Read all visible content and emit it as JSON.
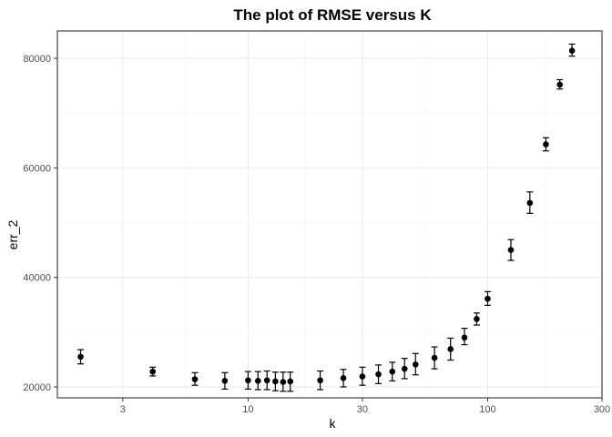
{
  "chart_data": {
    "type": "scatter",
    "title": "The plot of RMSE versus K",
    "xlabel": "k",
    "ylabel": "err_2",
    "x_scale": "log10",
    "xlim": [
      1.6,
      300
    ],
    "ylim": [
      18000,
      85000
    ],
    "x_ticks": [
      3,
      10,
      30,
      100,
      300
    ],
    "x_tick_labels": [
      "3",
      "10",
      "30",
      "100",
      "300"
    ],
    "y_ticks": [
      20000,
      40000,
      60000,
      80000
    ],
    "y_tick_labels": [
      "20000",
      "40000",
      "60000",
      "80000"
    ],
    "grid": true,
    "series": [
      {
        "name": "err_2",
        "error_bars": true,
        "points": [
          {
            "x": 2,
            "y": 25500,
            "lo": 24200,
            "hi": 26800
          },
          {
            "x": 4,
            "y": 22800,
            "lo": 22000,
            "hi": 23600
          },
          {
            "x": 6,
            "y": 21400,
            "lo": 20300,
            "hi": 22600
          },
          {
            "x": 8,
            "y": 21100,
            "lo": 19600,
            "hi": 22600
          },
          {
            "x": 10,
            "y": 21200,
            "lo": 19600,
            "hi": 22800
          },
          {
            "x": 11,
            "y": 21100,
            "lo": 19500,
            "hi": 22800
          },
          {
            "x": 12,
            "y": 21200,
            "lo": 19500,
            "hi": 22900
          },
          {
            "x": 13,
            "y": 21000,
            "lo": 19300,
            "hi": 22700
          },
          {
            "x": 14,
            "y": 20900,
            "lo": 19200,
            "hi": 22700
          },
          {
            "x": 15,
            "y": 21000,
            "lo": 19200,
            "hi": 22700
          },
          {
            "x": 20,
            "y": 21200,
            "lo": 19500,
            "hi": 22900
          },
          {
            "x": 25,
            "y": 21600,
            "lo": 20000,
            "hi": 23200
          },
          {
            "x": 30,
            "y": 21900,
            "lo": 20300,
            "hi": 23600
          },
          {
            "x": 35,
            "y": 22300,
            "lo": 20600,
            "hi": 24000
          },
          {
            "x": 40,
            "y": 22800,
            "lo": 21100,
            "hi": 24500
          },
          {
            "x": 45,
            "y": 23300,
            "lo": 21500,
            "hi": 25200
          },
          {
            "x": 50,
            "y": 24100,
            "lo": 22200,
            "hi": 26100
          },
          {
            "x": 60,
            "y": 25300,
            "lo": 23300,
            "hi": 27300
          },
          {
            "x": 70,
            "y": 26900,
            "lo": 24900,
            "hi": 28900
          },
          {
            "x": 80,
            "y": 29000,
            "lo": 27700,
            "hi": 30700
          },
          {
            "x": 90,
            "y": 32400,
            "lo": 31300,
            "hi": 33500
          },
          {
            "x": 100,
            "y": 36100,
            "lo": 34900,
            "hi": 37400
          },
          {
            "x": 125,
            "y": 45000,
            "lo": 43100,
            "hi": 46900
          },
          {
            "x": 150,
            "y": 53600,
            "lo": 51700,
            "hi": 55600
          },
          {
            "x": 175,
            "y": 64300,
            "lo": 63100,
            "hi": 65500
          },
          {
            "x": 200,
            "y": 75200,
            "lo": 74400,
            "hi": 76100
          },
          {
            "x": 225,
            "y": 81400,
            "lo": 80400,
            "hi": 82600
          }
        ]
      }
    ]
  }
}
